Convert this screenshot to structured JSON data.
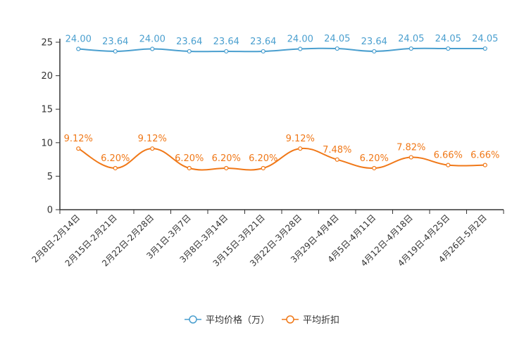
{
  "chart_data": {
    "type": "line",
    "title": "",
    "xlabel": "",
    "ylabel": "",
    "ylim": [
      0,
      25
    ],
    "yticks": [
      0,
      5,
      10,
      15,
      20,
      25
    ],
    "grid": false,
    "legend_position": "bottom-center",
    "categories": [
      "2月8日-2月14日",
      "2月15日-2月21日",
      "2月22日-2月28日",
      "3月1日-3月7日",
      "3月8日-3月14日",
      "3月15日-3月21日",
      "3月22日-3月28日",
      "3月29日-4月4日",
      "4月5日-4月11日",
      "4月12日-4月18日",
      "4月19日-4月25日",
      "4月26日-5月2日"
    ],
    "series": [
      {
        "name": "平均价格（万）",
        "color": "#4a9fcf",
        "values": [
          24.0,
          23.64,
          24.0,
          23.64,
          23.64,
          23.64,
          24.0,
          24.05,
          23.64,
          24.05,
          24.05,
          24.05
        ],
        "labels": [
          "24.00",
          "23.64",
          "24.00",
          "23.64",
          "23.64",
          "23.64",
          "24.00",
          "24.05",
          "23.64",
          "24.05",
          "24.05",
          "24.05"
        ]
      },
      {
        "name": "平均折扣",
        "color": "#f07818",
        "values": [
          9.12,
          6.2,
          9.12,
          6.2,
          6.2,
          6.2,
          9.12,
          7.48,
          6.2,
          7.82,
          6.66,
          6.66
        ],
        "labels": [
          "9.12%",
          "6.20%",
          "9.12%",
          "6.20%",
          "6.20%",
          "6.20%",
          "9.12%",
          "7.48%",
          "6.20%",
          "7.82%",
          "6.66%",
          "6.66%"
        ]
      }
    ]
  }
}
